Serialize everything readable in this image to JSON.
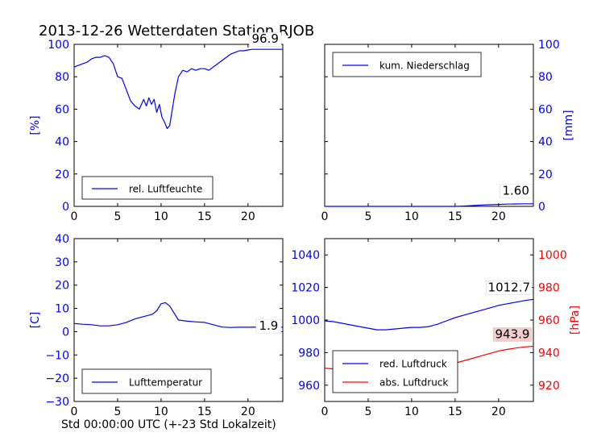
{
  "figure": {
    "title": "2013-12-26 Wetterdaten Station RJOB",
    "xlabel": "Std 00:00:00 UTC (+-23 Std Lokalzeit)"
  },
  "colors": {
    "blue": "#0000ff",
    "red": "#ff0000",
    "black": "#000000",
    "label_bg": "#ffffff",
    "label_bg_red": "#f4cccc"
  },
  "chart_data": [
    {
      "type": "line",
      "id": "humidity",
      "ylabel": "[%]",
      "xlim": [
        0,
        24
      ],
      "ylim": [
        0,
        100
      ],
      "xticks": [
        0,
        5,
        10,
        15,
        20
      ],
      "yticks": [
        0,
        20,
        40,
        60,
        80,
        100
      ],
      "axis_side": "left",
      "legend_position": "lower-left",
      "annotation": "96.9",
      "series": [
        {
          "name": "rel. Luftfeuchte",
          "color": "#0000ff",
          "x": [
            0,
            0.5,
            1,
            1.5,
            2,
            2.5,
            3,
            3.5,
            4,
            4.5,
            5,
            5.5,
            6,
            6.5,
            7,
            7.5,
            8,
            8.3,
            8.6,
            8.9,
            9.2,
            9.5,
            9.8,
            10.1,
            10.4,
            10.7,
            11,
            11.3,
            11.6,
            12,
            12.5,
            13,
            13.5,
            14,
            14.5,
            15,
            15.5,
            16,
            16.5,
            17,
            17.5,
            18,
            18.5,
            19,
            19.5,
            20,
            20.5,
            21,
            22,
            23,
            24
          ],
          "y": [
            86,
            87,
            88,
            89,
            91,
            92,
            92,
            93,
            92,
            88,
            80,
            79,
            72,
            65,
            62,
            60,
            66,
            62,
            67,
            63,
            66,
            58,
            63,
            55,
            52,
            48,
            50,
            60,
            70,
            80,
            84,
            83,
            85,
            84,
            85,
            85,
            84,
            86,
            88,
            90,
            92,
            94,
            95,
            96,
            96,
            96.5,
            96.9,
            96.9,
            96.9,
            96.9,
            96.9
          ]
        }
      ]
    },
    {
      "type": "line",
      "id": "precipitation",
      "ylabel": "[mm]",
      "xlim": [
        0,
        24
      ],
      "ylim": [
        0,
        100
      ],
      "xticks": [
        0,
        5,
        10,
        15,
        20
      ],
      "yticks": [
        0,
        20,
        40,
        60,
        80,
        100
      ],
      "axis_side": "right",
      "legend_position": "upper-left",
      "annotation": "1.60",
      "series": [
        {
          "name": "kum. Niederschlag",
          "color": "#0000ff",
          "x": [
            0,
            15,
            16,
            17,
            18,
            19,
            20,
            21,
            22,
            23,
            24
          ],
          "y": [
            0,
            0,
            0.2,
            0.5,
            0.8,
            1.0,
            1.2,
            1.4,
            1.5,
            1.6,
            1.6
          ]
        }
      ]
    },
    {
      "type": "line",
      "id": "temperature",
      "ylabel": "[C]",
      "xlim": [
        0,
        24
      ],
      "ylim": [
        -30,
        40
      ],
      "xticks": [
        0,
        5,
        10,
        15,
        20
      ],
      "yticks": [
        -30,
        -20,
        -10,
        0,
        10,
        20,
        30,
        40
      ],
      "axis_side": "left",
      "legend_position": "lower-left",
      "annotation": "1.9",
      "series": [
        {
          "name": "Lufttemperatur",
          "color": "#0000ff",
          "x": [
            0,
            1,
            2,
            3,
            4,
            5,
            6,
            7,
            8,
            9,
            9.5,
            10,
            10.5,
            11,
            11.5,
            12,
            13,
            14,
            15,
            16,
            17,
            18,
            19,
            20,
            21,
            22,
            23,
            24
          ],
          "y": [
            3.5,
            3.2,
            3.0,
            2.5,
            2.5,
            3.0,
            4.0,
            5.5,
            6.5,
            7.5,
            9.0,
            12.0,
            12.5,
            11.0,
            8.0,
            5.0,
            4.5,
            4.2,
            4.0,
            3.0,
            2.0,
            1.8,
            1.9,
            1.9,
            1.9,
            1.9,
            1.9,
            1.9
          ]
        }
      ]
    },
    {
      "type": "line",
      "id": "pressure",
      "xlim": [
        0,
        24
      ],
      "xticks": [
        0,
        5,
        10,
        15,
        20
      ],
      "ylim": [
        950,
        1050
      ],
      "yticks": [
        960,
        980,
        1000,
        1020,
        1040
      ],
      "ylim_right": [
        910,
        1010
      ],
      "yticks_right": [
        920,
        940,
        960,
        980,
        1000
      ],
      "ylabel_right": "[hPa]",
      "legend_position": "lower-left",
      "annotation": "1012.7",
      "annotation_right": "943.9",
      "series": [
        {
          "name": "red. Luftdruck",
          "color": "#0000ff",
          "axis": "left",
          "x": [
            0,
            1,
            2,
            3,
            4,
            5,
            6,
            7,
            8,
            9,
            10,
            11,
            12,
            13,
            14,
            15,
            16,
            17,
            18,
            19,
            20,
            21,
            22,
            23,
            24
          ],
          "y": [
            999.5,
            999,
            998,
            997,
            996,
            995,
            994,
            994,
            994.5,
            995,
            995.5,
            995.5,
            996,
            997.5,
            999.5,
            1001.5,
            1003,
            1004.5,
            1006,
            1007.5,
            1009,
            1010,
            1011,
            1012,
            1012.7
          ]
        },
        {
          "name": "abs. Luftdruck",
          "color": "#ff0000",
          "axis": "right",
          "x": [
            0,
            1,
            2,
            3,
            4,
            5,
            6,
            7,
            8,
            9,
            10,
            11,
            12,
            13,
            14,
            15,
            16,
            17,
            18,
            19,
            20,
            21,
            22,
            23,
            24
          ],
          "y": [
            930.5,
            930,
            929,
            928,
            927,
            926,
            925.5,
            925.5,
            926,
            926.5,
            927.5,
            928,
            929,
            930.5,
            932,
            933.5,
            935,
            936.5,
            938,
            939.5,
            941,
            942,
            942.8,
            943.5,
            943.9
          ]
        }
      ]
    }
  ]
}
